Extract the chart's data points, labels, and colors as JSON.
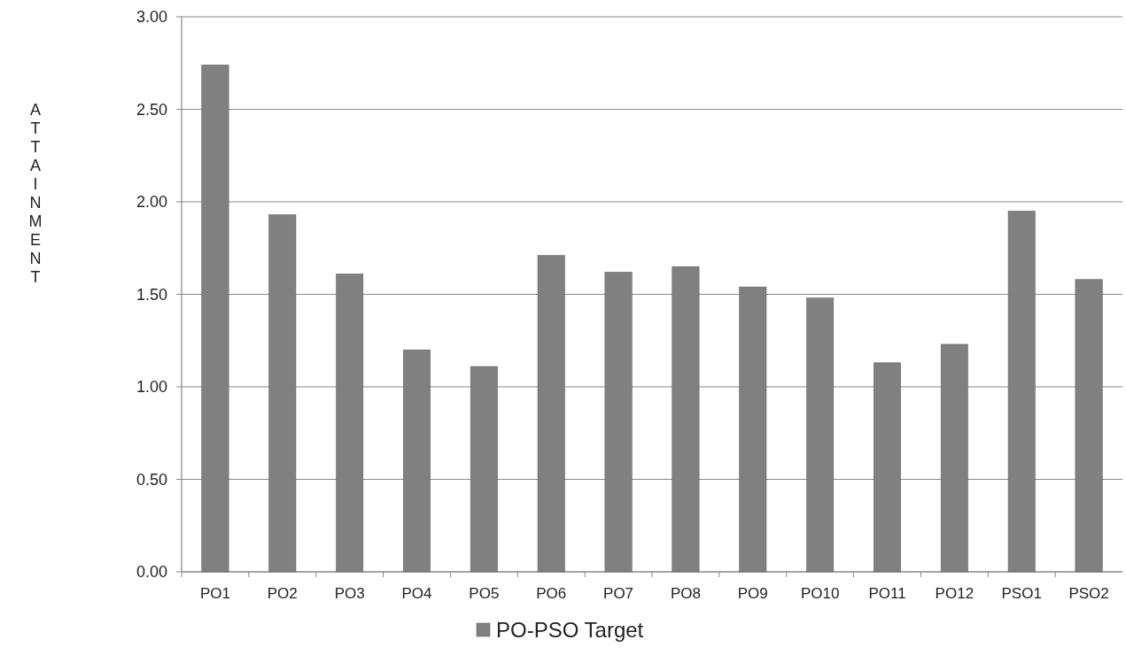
{
  "chart_data": {
    "type": "bar",
    "ylabel": "ATTAINMENT",
    "categories": [
      "PO1",
      "PO2",
      "PO3",
      "PO4",
      "PO5",
      "PO6",
      "PO7",
      "PO8",
      "PO9",
      "PO10",
      "PO11",
      "PO12",
      "PSO1",
      "PSO2"
    ],
    "series": [
      {
        "name": "PO-PSO Target",
        "color": "#808080",
        "values": [
          2.74,
          1.93,
          1.61,
          1.2,
          1.11,
          1.71,
          1.62,
          1.65,
          1.54,
          1.48,
          1.13,
          1.23,
          1.95,
          1.58
        ]
      }
    ],
    "ylim": [
      0,
      3
    ],
    "yticks": [
      {
        "value": 0,
        "label": "0.00"
      },
      {
        "value": 0.5,
        "label": "0.50"
      },
      {
        "value": 1,
        "label": "1.00"
      },
      {
        "value": 1.5,
        "label": "1.50"
      },
      {
        "value": 2,
        "label": "2.00"
      },
      {
        "value": 2.5,
        "label": "2.50"
      },
      {
        "value": 3,
        "label": "3.00"
      }
    ],
    "grid": "y",
    "legend": "bottom"
  }
}
